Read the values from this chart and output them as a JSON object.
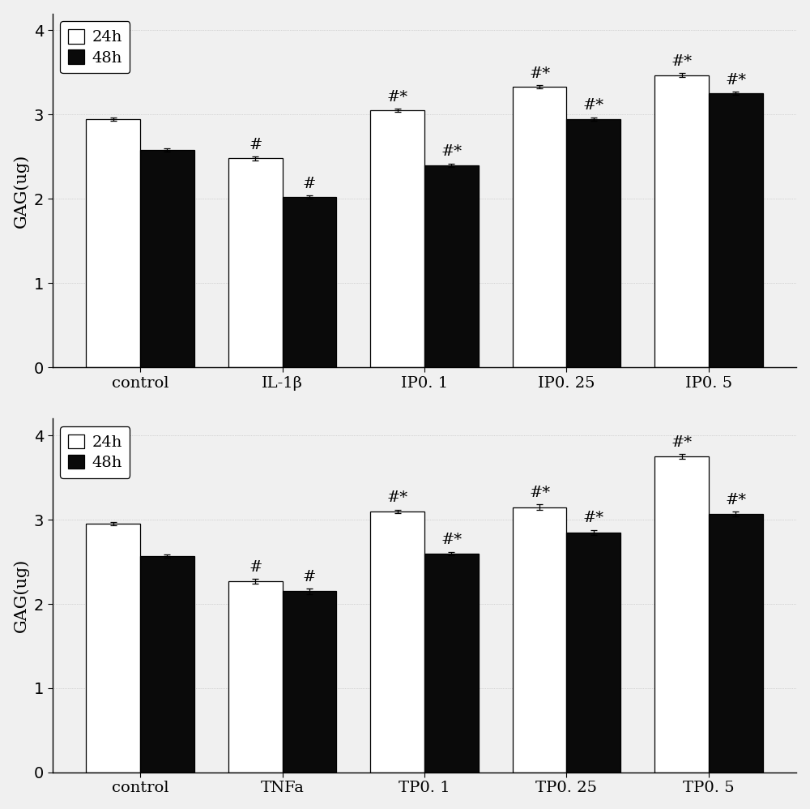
{
  "top": {
    "categories": [
      "control",
      "IL-1β",
      "IP0. 1",
      "IP0. 25",
      "IP0. 5"
    ],
    "values_24h": [
      2.95,
      2.48,
      3.05,
      3.33,
      3.47
    ],
    "values_48h": [
      2.58,
      2.02,
      2.4,
      2.95,
      3.25
    ],
    "err_24h": [
      0.02,
      0.02,
      0.02,
      0.02,
      0.02
    ],
    "err_48h": [
      0.02,
      0.02,
      0.02,
      0.02,
      0.02
    ],
    "annot_24h": [
      "",
      "#",
      "#*",
      "#*",
      "#*"
    ],
    "annot_48h": [
      "",
      "#",
      "#*",
      "#*",
      "#*"
    ],
    "ylabel": "GAG(ug)",
    "ylim": [
      0,
      4.2
    ],
    "yticks": [
      0,
      1,
      2,
      3,
      4
    ]
  },
  "bottom": {
    "categories": [
      "control",
      "TNFa",
      "TP0. 1",
      "TP0. 25",
      "TP0. 5"
    ],
    "values_24h": [
      2.95,
      2.27,
      3.1,
      3.15,
      3.75
    ],
    "values_48h": [
      2.57,
      2.15,
      2.6,
      2.85,
      3.07
    ],
    "err_24h": [
      0.02,
      0.03,
      0.02,
      0.03,
      0.03
    ],
    "err_48h": [
      0.02,
      0.03,
      0.02,
      0.03,
      0.03
    ],
    "annot_24h": [
      "",
      "#",
      "#*",
      "#*",
      "#*"
    ],
    "annot_48h": [
      "",
      "#",
      "#*",
      "#*",
      "#*"
    ],
    "ylabel": "GAG(ug)",
    "ylim": [
      0,
      4.2
    ],
    "yticks": [
      0,
      1,
      2,
      3,
      4
    ]
  },
  "bar_width": 0.38,
  "color_24h": "#ffffff",
  "color_48h": "#0a0a0a",
  "edgecolor": "#000000",
  "annot_fontsize": 14,
  "tick_fontsize": 14,
  "label_fontsize": 15,
  "legend_fontsize": 14,
  "fig_facecolor": "#f0f0f0",
  "ax_facecolor": "#f0f0f0"
}
